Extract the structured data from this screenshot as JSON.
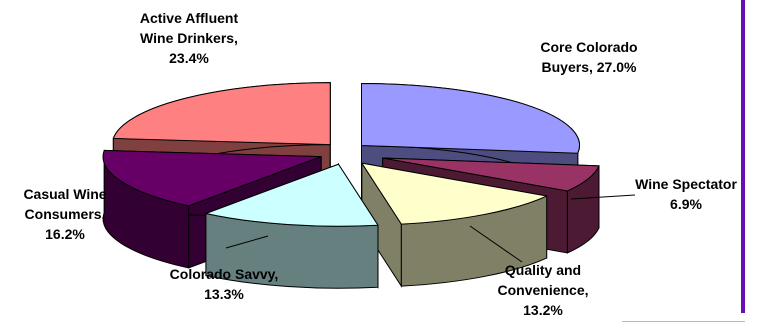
{
  "chart_data": {
    "type": "pie",
    "style": "3d-exploded",
    "title": "",
    "categories": [
      "Core Colorado Buyers",
      "Wine Spectator",
      "Quality and Convenience",
      "Colorado Savvy",
      "Casual Wine Consumers",
      "Active Affluent Wine Drinkers"
    ],
    "values": [
      27.0,
      6.9,
      13.2,
      13.3,
      16.2,
      23.4
    ],
    "value_unit": "%",
    "slices": [
      {
        "name": "Core Colorado Buyers",
        "value": 27.0,
        "label_lines": [
          "Core Colorado",
          "Buyers, 27.0%"
        ],
        "top_color": "#9999ff",
        "side_color": "#4d4d80"
      },
      {
        "name": "Wine Spectator",
        "value": 6.9,
        "label_lines": [
          "Wine Spectator",
          "6.9%"
        ],
        "top_color": "#993366",
        "side_color": "#4d1a33"
      },
      {
        "name": "Quality and Convenience",
        "value": 13.2,
        "label_lines": [
          "Quality and",
          "Convenience,",
          "13.2%"
        ],
        "top_color": "#ffffcc",
        "side_color": "#808066"
      },
      {
        "name": "Colorado Savvy",
        "value": 13.3,
        "label_lines": [
          "Colorado Savvy,",
          "13.3%"
        ],
        "top_color": "#ccffff",
        "side_color": "#668080"
      },
      {
        "name": "Casual Wine Consumers",
        "value": 16.2,
        "label_lines": [
          "Casual Wine",
          "Consumers,",
          "16.2%"
        ],
        "top_color": "#660066",
        "side_color": "#330033"
      },
      {
        "name": "Active Affluent Wine Drinkers",
        "value": 23.4,
        "label_lines": [
          "Active Affluent",
          "Wine Drinkers,",
          "23.4%"
        ],
        "top_color": "#ff8080",
        "side_color": "#804040"
      }
    ],
    "legend": "none",
    "colors": {
      "edge_accent": "#6a0fb5",
      "leader_line": "#000000"
    }
  }
}
